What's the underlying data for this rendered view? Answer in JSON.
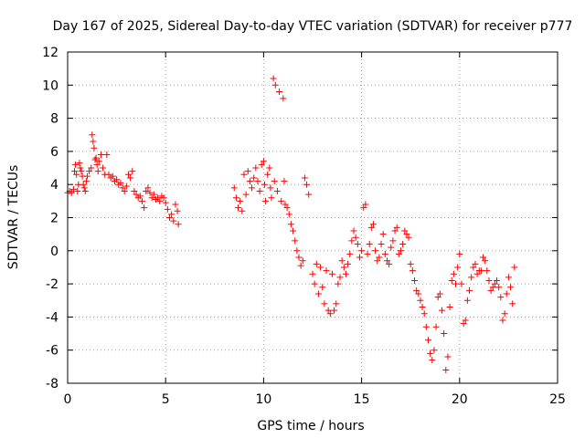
{
  "chart_data": {
    "type": "scatter",
    "title": "Day 167 of 2025, Sidereal Day-to-day VTEC variation (SDTVAR) for receiver p777",
    "xlabel": "GPS time / hours",
    "ylabel": "SDTVAR / TECUs",
    "xlim": [
      0,
      25
    ],
    "ylim": [
      -8,
      12
    ],
    "xticks": [
      0,
      5,
      10,
      15,
      20,
      25
    ],
    "yticks": [
      -8,
      -6,
      -4,
      -2,
      0,
      2,
      4,
      6,
      8,
      10,
      12
    ],
    "grid": true,
    "marker": "plus",
    "color": "#ff0000",
    "series": [
      {
        "x": [
          0.0,
          0.1,
          0.2,
          0.3,
          0.35,
          0.4,
          0.45,
          0.5,
          0.55,
          0.6,
          0.65,
          0.7,
          0.75,
          0.8,
          0.85,
          0.9,
          0.95,
          1.0,
          1.1,
          1.2,
          1.25,
          1.3,
          1.35,
          1.4,
          1.45,
          1.5,
          1.55,
          1.6,
          1.7,
          1.8,
          1.9,
          2.0,
          2.1,
          2.2,
          2.3,
          2.4,
          2.5,
          2.6,
          2.7,
          2.8,
          2.9,
          3.0,
          3.1,
          3.2,
          3.3,
          3.4,
          3.5,
          3.6,
          3.7,
          3.8,
          3.9,
          4.0,
          4.1,
          4.2,
          4.3,
          4.4,
          4.5,
          4.6,
          4.7,
          4.8,
          4.9,
          5.0,
          5.1,
          5.2,
          5.3,
          5.4,
          5.5,
          5.6,
          5.65
        ],
        "y": [
          3.5,
          3.6,
          3.5,
          3.7,
          4.8,
          5.2,
          4.6,
          3.6,
          4.0,
          5.3,
          5.0,
          4.8,
          4.5,
          4.0,
          3.8,
          3.6,
          4.2,
          4.5,
          4.8,
          5.0,
          7.0,
          6.6,
          6.2,
          5.5,
          5.6,
          5.2,
          4.8,
          5.4,
          5.8,
          5.0,
          4.6,
          5.8,
          4.6,
          4.4,
          4.5,
          4.2,
          4.3,
          4.0,
          4.1,
          3.8,
          3.6,
          3.9,
          4.6,
          4.4,
          4.8,
          3.6,
          3.4,
          3.2,
          3.3,
          3.0,
          2.6,
          3.6,
          3.8,
          3.5,
          3.2,
          3.4,
          3.1,
          3.2,
          3.0,
          3.3,
          3.2,
          2.9,
          2.5,
          2.0,
          2.2,
          1.8,
          2.8,
          2.4,
          1.6
        ]
      },
      {
        "x": [
          8.5,
          8.6,
          8.7,
          8.8,
          8.9,
          9.0,
          9.1,
          9.2,
          9.3,
          9.4,
          9.5,
          9.6,
          9.7,
          9.8,
          9.9,
          10.0,
          10.05,
          10.1,
          10.2,
          10.3,
          10.35,
          10.4,
          10.5,
          10.55,
          10.6,
          10.7,
          10.8,
          10.9,
          11.0,
          11.05,
          11.1,
          11.2,
          11.3,
          11.4,
          11.5,
          11.6,
          11.7,
          11.8,
          11.9,
          12.0,
          12.1,
          12.2,
          12.3
        ],
        "y": [
          3.8,
          3.2,
          2.6,
          3.0,
          2.4,
          4.6,
          3.4,
          4.8,
          4.2,
          3.8,
          4.4,
          5.0,
          4.2,
          3.6,
          5.2,
          5.4,
          4.0,
          3.0,
          4.6,
          5.0,
          3.8,
          3.2,
          10.4,
          4.2,
          10.0,
          3.6,
          9.6,
          3.0,
          9.2,
          4.2,
          2.8,
          2.6,
          2.2,
          1.6,
          1.2,
          0.6,
          0.0,
          -0.4,
          -0.9,
          -0.6,
          4.4,
          4.0,
          3.4
        ]
      },
      {
        "x": [
          12.5,
          12.6,
          12.7,
          12.8,
          12.9,
          13.0,
          13.1,
          13.2,
          13.3,
          13.4,
          13.5,
          13.6,
          13.7,
          13.8,
          13.9,
          14.0,
          14.1,
          14.2,
          14.3,
          14.4,
          14.5,
          14.6,
          14.7,
          14.8,
          14.9,
          15.0,
          15.1,
          15.2,
          15.3,
          15.4,
          15.5,
          15.6,
          15.7,
          15.8,
          15.9,
          16.0,
          16.1,
          16.2,
          16.3,
          16.4,
          16.5,
          16.6,
          16.7,
          16.8,
          16.9,
          17.0,
          17.1,
          17.2,
          17.3,
          17.4,
          17.5
        ],
        "y": [
          -1.4,
          -2.0,
          -0.8,
          -2.6,
          -1.0,
          -2.2,
          -3.2,
          -1.2,
          -3.6,
          -3.8,
          -1.4,
          -3.6,
          -3.2,
          -2.0,
          -1.6,
          -0.6,
          -1.0,
          -1.4,
          -0.8,
          -0.2,
          0.6,
          1.2,
          0.8,
          0.4,
          -0.4,
          0.0,
          2.6,
          2.8,
          -0.2,
          0.4,
          1.4,
          1.6,
          0.0,
          -0.6,
          -0.4,
          0.4,
          1.0,
          -0.2,
          -0.6,
          -0.8,
          0.2,
          0.6,
          1.2,
          1.4,
          -0.2,
          0.0,
          0.4,
          1.2,
          1.0,
          0.8,
          -0.8
        ]
      },
      {
        "x": [
          17.6,
          17.7,
          17.8,
          17.9,
          18.0,
          18.1,
          18.2,
          18.3,
          18.4,
          18.5,
          18.6,
          18.7,
          18.8,
          18.9,
          19.0,
          19.1,
          19.2,
          19.3,
          19.4,
          19.5,
          19.6,
          19.7,
          19.8,
          19.9,
          20.0,
          20.1,
          20.2,
          20.3,
          20.4,
          20.5,
          20.6,
          20.7,
          20.8,
          20.9,
          21.0,
          21.1,
          21.2,
          21.3,
          21.4,
          21.5,
          21.6,
          21.7,
          21.8,
          21.9,
          22.0,
          22.1,
          22.2,
          22.3,
          22.4,
          22.5,
          22.6,
          22.7,
          22.8
        ],
        "y": [
          -1.2,
          -1.8,
          -2.4,
          -2.6,
          -3.0,
          -3.4,
          -3.8,
          -4.6,
          -5.4,
          -6.2,
          -6.6,
          -6.0,
          -4.6,
          -2.8,
          -2.6,
          -3.6,
          -5.0,
          -7.2,
          -6.4,
          -3.4,
          -1.8,
          -1.4,
          -2.0,
          -1.0,
          -0.2,
          -2.0,
          -4.4,
          -4.2,
          -3.0,
          -2.4,
          -1.6,
          -1.0,
          -0.8,
          -1.4,
          -1.2,
          -1.2,
          -0.4,
          -0.6,
          -1.2,
          -1.8,
          -2.4,
          -2.2,
          -2.0,
          -1.8,
          -2.2,
          -2.8,
          -4.2,
          -3.8,
          -2.6,
          -1.6,
          -2.2,
          -3.2,
          -1.0
        ]
      }
    ]
  }
}
